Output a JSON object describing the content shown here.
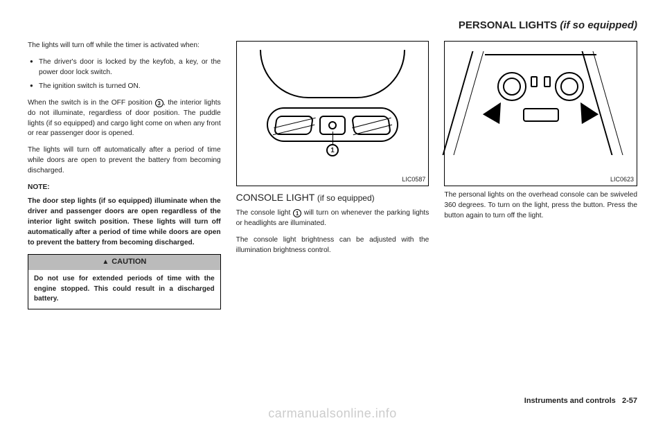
{
  "header": {
    "title": "PERSONAL LIGHTS",
    "qualifier": "(if so equipped)"
  },
  "col1": {
    "p1": "The lights will turn off while the timer is activated when:",
    "li1": "The driver's door is locked by the keyfob, a key, or the power door lock switch.",
    "li2": "The ignition switch is turned ON.",
    "p2a": "When the switch is in the OFF position ",
    "p2_num": "3",
    "p2b": ", the interior lights do not illuminate, regardless of door position. The puddle lights (if so equipped) and cargo light come on when any front or rear passenger door is opened.",
    "p3": "The lights will turn off automatically after a period of time while doors are open to prevent the battery from becoming discharged.",
    "note_label": "NOTE:",
    "note_body": "The door step lights (if so equipped) illuminate when the driver and passenger doors are open regardless of the interior light switch position. These lights will turn off automatically after a period of time while doors are open to prevent the battery from becoming discharged.",
    "caution_head": "CAUTION",
    "caution_body": "Do not use for extended periods of time with the engine stopped. This could result in a discharged battery."
  },
  "col2": {
    "fig_code": "LIC0587",
    "callout_num": "1",
    "subhead": "CONSOLE LIGHT",
    "subhead_eq": "(if so equipped)",
    "p1a": "The console light ",
    "p1_num": "1",
    "p1b": " will turn on whenever the parking lights or headlights are illuminated.",
    "p2": "The console light brightness can be adjusted with the illumination brightness control."
  },
  "col3": {
    "fig_code": "LIC0623",
    "p1": "The personal lights on the overhead console can be swiveled 360 degrees. To turn on the light, press the button. Press the button again to turn off the light."
  },
  "footer": {
    "section": "Instruments and controls",
    "page": "2-57"
  },
  "watermark": "carmanualsonline.info"
}
